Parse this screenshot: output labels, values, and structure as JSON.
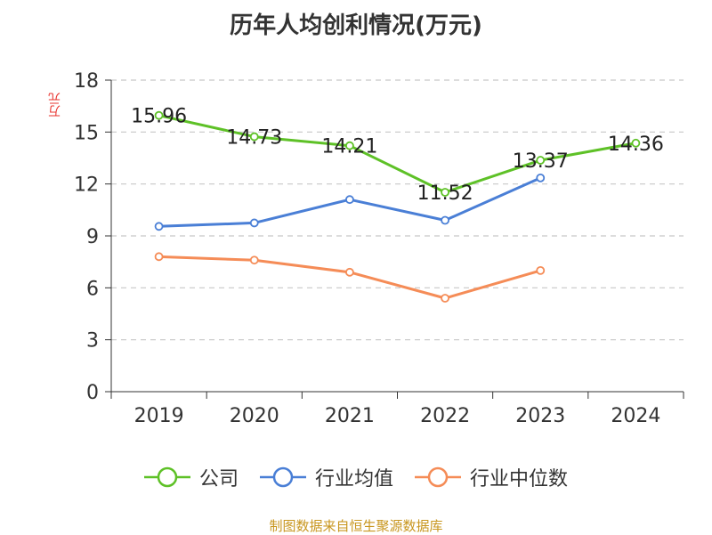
{
  "chart_data": {
    "type": "line",
    "title": "历年人均创利情况(万元)",
    "ylabel": "万元",
    "xlabel": "",
    "categories": [
      "2019",
      "2020",
      "2021",
      "2022",
      "2023",
      "2024"
    ],
    "ylim": [
      0,
      18
    ],
    "yticks": [
      0,
      3,
      6,
      9,
      12,
      15,
      18
    ],
    "grid": "horizontal-dashed",
    "legend_position": "bottom",
    "series": [
      {
        "name": "公司",
        "color": "#5ec127",
        "values": [
          15.96,
          14.73,
          14.21,
          11.52,
          13.37,
          14.36
        ],
        "labels": [
          "15.96",
          "14.73",
          "14.21",
          "11.52",
          "13.37",
          "14.36"
        ]
      },
      {
        "name": "行业均值",
        "color": "#4a7fd6",
        "values": [
          9.55,
          9.75,
          11.1,
          9.9,
          12.35,
          null
        ]
      },
      {
        "name": "行业中位数",
        "color": "#f58c57",
        "values": [
          7.8,
          7.6,
          6.9,
          5.4,
          7.0,
          null
        ]
      }
    ]
  },
  "footer": {
    "source": "制图数据来自恒生聚源数据库"
  }
}
